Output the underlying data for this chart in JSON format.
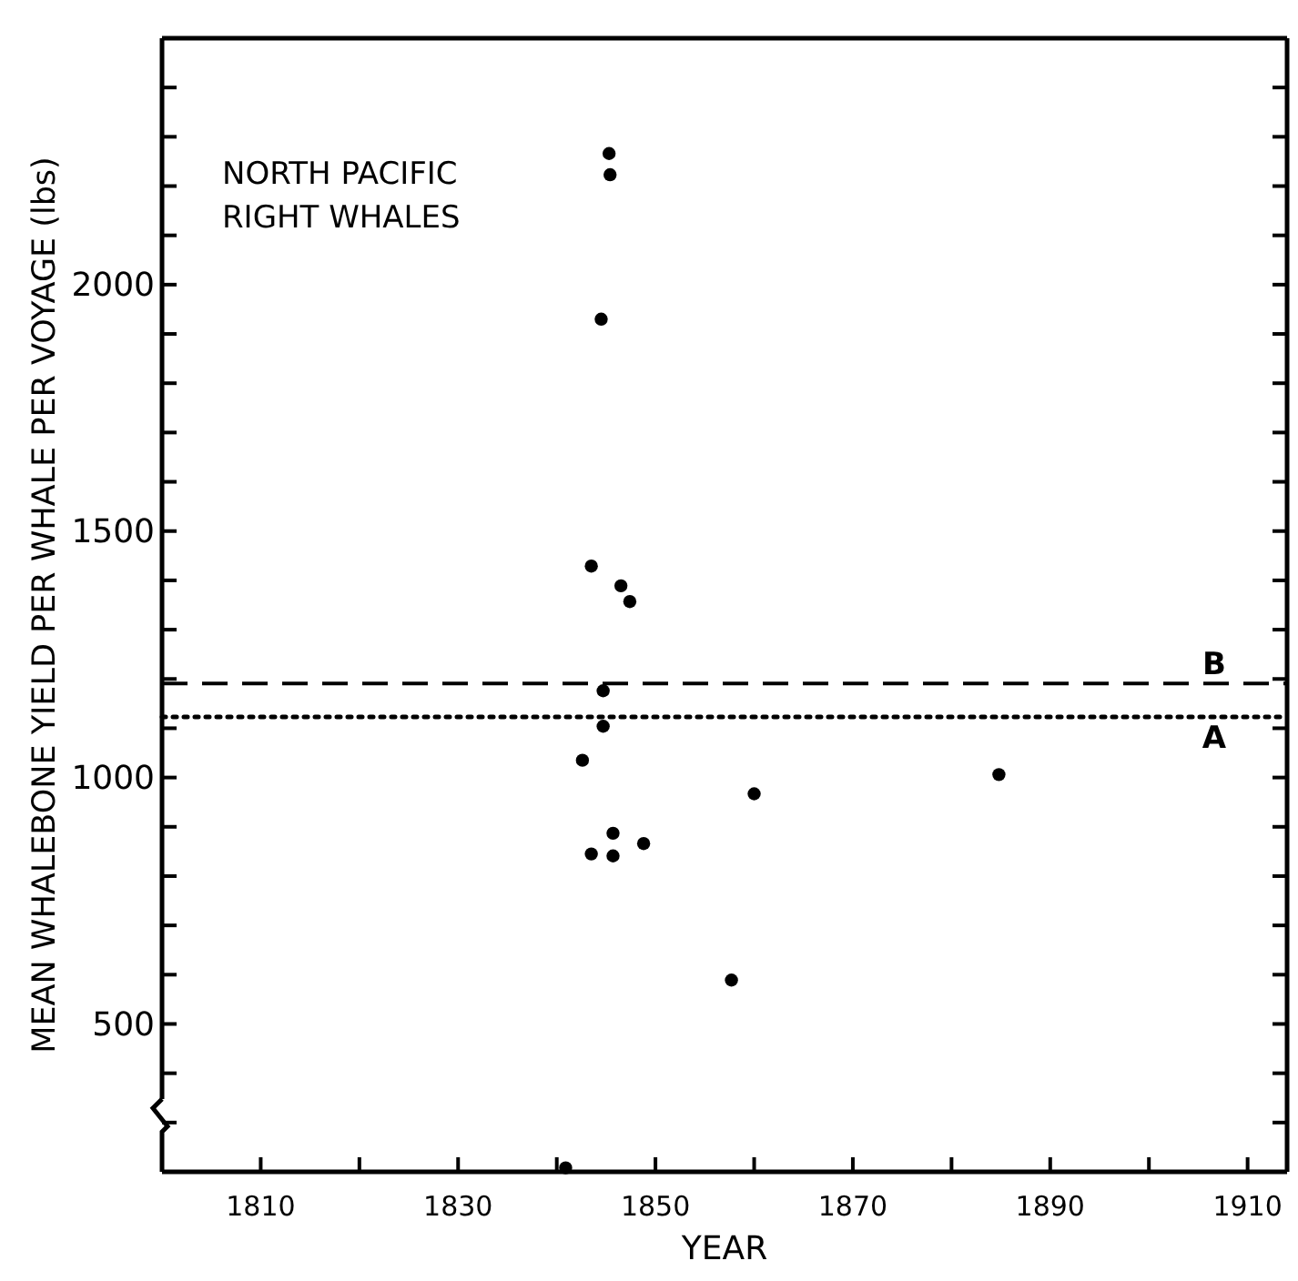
{
  "chart_data": {
    "type": "scatter",
    "title": "NORTH PACIFIC\nRIGHT WHALES",
    "xlabel": "YEAR",
    "ylabel": "MEAN WHALEBONE YIELD PER WHALE PER VOYAGE (lbs)",
    "x": [
      1845.3,
      1845.4,
      1844.5,
      1843.5,
      1846.5,
      1847.4,
      1844.7,
      1844.7,
      1842.6,
      1860.0,
      1884.8,
      1845.7,
      1843.5,
      1845.7,
      1848.8,
      1857.7,
      1840.9
    ],
    "values": [
      2266,
      2223,
      1930,
      1429,
      1389,
      1357,
      1176,
      1104,
      1035,
      967,
      1006,
      887,
      845,
      841,
      866,
      589,
      208
    ],
    "color": "#000000",
    "marker": "circle",
    "xlim": [
      1800,
      1914
    ],
    "ylim": [
      200,
      2500
    ],
    "xticks": [
      1810,
      {
        "value": 1820,
        "label": null
      },
      1830,
      {
        "value": 1840,
        "label": null
      },
      1850,
      {
        "value": 1860,
        "label": null
      },
      1870,
      {
        "value": 1880,
        "label": null
      },
      1890,
      {
        "value": 1900,
        "label": null
      },
      1910
    ],
    "yticks": [
      {
        "value": 300,
        "label": null
      },
      {
        "value": 400,
        "label": null
      },
      500,
      {
        "value": 600,
        "label": null
      },
      {
        "value": 700,
        "label": null
      },
      {
        "value": 800,
        "label": null
      },
      {
        "value": 900,
        "label": null
      },
      1000,
      {
        "value": 1100,
        "label": null
      },
      {
        "value": 1200,
        "label": null
      },
      {
        "value": 1300,
        "label": null
      },
      {
        "value": 1400,
        "label": null
      },
      1500,
      {
        "value": 1600,
        "label": null
      },
      {
        "value": 1700,
        "label": null
      },
      {
        "value": 1800,
        "label": null
      },
      {
        "value": 1900,
        "label": null
      },
      2000,
      {
        "value": 2100,
        "label": null
      },
      {
        "value": 2200,
        "label": null
      },
      {
        "value": 2300,
        "label": null
      },
      {
        "value": 2400,
        "label": null
      }
    ],
    "ref_lines": [
      {
        "axis": "y",
        "value": 1191,
        "label": "B",
        "line_style": "dashed",
        "color": "#000000"
      },
      {
        "axis": "y",
        "value": 1123,
        "label": "A",
        "line_style": "dotted",
        "color": "#000000"
      }
    ],
    "tick_labels": true
  }
}
